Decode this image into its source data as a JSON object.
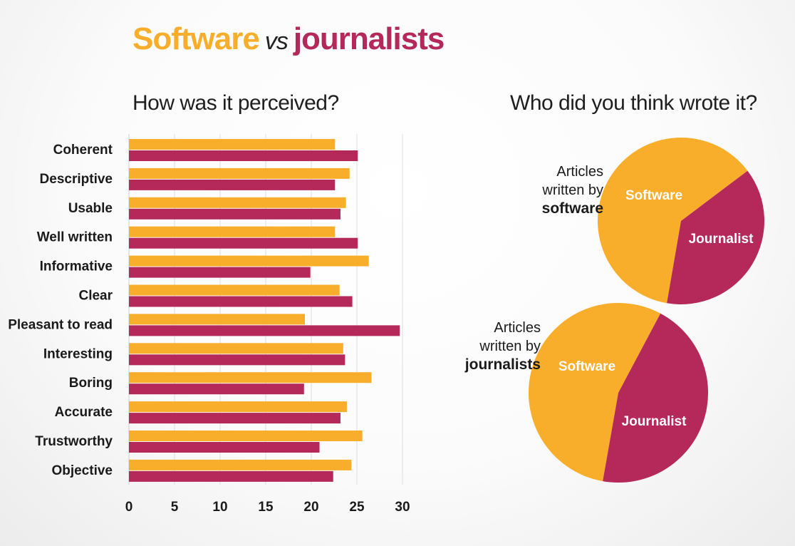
{
  "header": {
    "title_software": "Software",
    "title_vs": "vs",
    "title_journalists": "journalists"
  },
  "colors": {
    "software": "#f9ae2b",
    "journalist": "#b5285a",
    "grid": "#dddddd",
    "text": "#1a1a1a"
  },
  "chart_data": [
    {
      "type": "bar",
      "orientation": "horizontal",
      "title": "How was it perceived?",
      "categories": [
        "Coherent",
        "Descriptive",
        "Usable",
        "Well written",
        "Informative",
        "Clear",
        "Pleasant to read",
        "Interesting",
        "Boring",
        "Accurate",
        "Trustworthy",
        "Objective"
      ],
      "series": [
        {
          "key": "software",
          "values": [
            22.6,
            24.2,
            23.8,
            22.6,
            26.3,
            23.1,
            19.3,
            23.5,
            26.6,
            23.9,
            25.6,
            24.4
          ]
        },
        {
          "key": "journalist",
          "values": [
            25.1,
            22.6,
            23.2,
            25.1,
            19.9,
            24.5,
            29.7,
            23.7,
            19.2,
            23.2,
            20.9,
            22.4
          ]
        }
      ],
      "xlim": [
        0,
        30
      ],
      "xticks": [
        "0",
        "5",
        "10",
        "15",
        "20",
        "25",
        "30"
      ],
      "grid": true
    },
    {
      "type": "pie",
      "title": "Who did you think wrote it?",
      "caption_lines": [
        "Articles",
        "written by",
        "software"
      ],
      "slices": [
        {
          "label": "Software",
          "key": "software",
          "value": 62
        },
        {
          "label": "Journalist",
          "key": "journalist",
          "value": 38
        }
      ]
    },
    {
      "type": "pie",
      "caption_lines": [
        "Articles",
        "written by",
        "journalists"
      ],
      "slices": [
        {
          "label": "Software",
          "key": "software",
          "value": 55
        },
        {
          "label": "Journalist",
          "key": "journalist",
          "value": 45
        }
      ]
    }
  ]
}
